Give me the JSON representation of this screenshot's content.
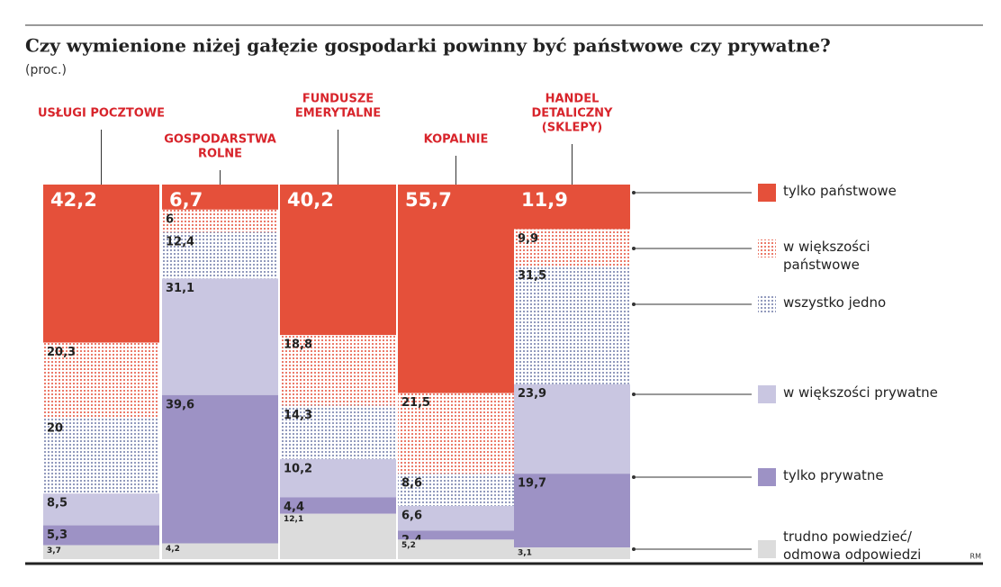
{
  "chart_data": {
    "type": "stacked_bar",
    "title": "Czy wymienione niżej gałęzie gospodarki powinny być państwowe czy prywatne?",
    "subtitle": "(proc.)",
    "credit": "RM",
    "categories": [
      [
        "USŁUGI POCZTOWE"
      ],
      [
        "GOSPODARSTWA",
        "ROLNE"
      ],
      [
        "FUNDUSZE",
        "EMERYTALNE"
      ],
      [
        "KOPALNIE"
      ],
      [
        "HANDEL",
        "DETALICZNY",
        "(SKLEPY)"
      ]
    ],
    "ylim": [
      0,
      100
    ],
    "series": [
      {
        "name": "tylko państwowe",
        "color": "#e5503a",
        "values": [
          42.2,
          6.7,
          40.2,
          55.7,
          11.9
        ],
        "value_labels": [
          "42,2",
          "6,7",
          "40,2",
          "55,7",
          "11,9"
        ]
      },
      {
        "name": "w większości państwowe",
        "color": "#e5503a",
        "pattern": "dots",
        "values": [
          20.3,
          6,
          18.8,
          21.5,
          9.9
        ],
        "value_labels": [
          "20,3",
          "6",
          "18,8",
          "21,5",
          "9,9"
        ]
      },
      {
        "name": "wszystko jedno",
        "color": "#6f7aa8",
        "pattern": "dots",
        "values": [
          20,
          12.4,
          14.3,
          8.6,
          31.5
        ],
        "value_labels": [
          "20",
          "12,4",
          "14,3",
          "8,6",
          "31,5"
        ]
      },
      {
        "name": "w większości prywatne",
        "color": "#c9c6e1",
        "values": [
          8.5,
          31.1,
          10.2,
          6.6,
          23.9
        ],
        "value_labels": [
          "8,5",
          "31,1",
          "10,2",
          "6,6",
          "23,9"
        ]
      },
      {
        "name": "tylko prywatne",
        "color": "#9d92c5",
        "values": [
          5.3,
          39.6,
          4.4,
          2.4,
          19.7
        ],
        "value_labels": [
          "5,3",
          "39,6",
          "4,4",
          "2,4",
          "19,7"
        ]
      },
      {
        "name": "trudno powiedzieć/ odmowa odpowiedzi",
        "color": "#dcdcdc",
        "values": [
          3.7,
          4.2,
          12.1,
          5.2,
          3.1
        ],
        "value_labels": [
          "3,7",
          "4,2",
          "12,1",
          "5,2",
          "3,1"
        ]
      }
    ]
  }
}
